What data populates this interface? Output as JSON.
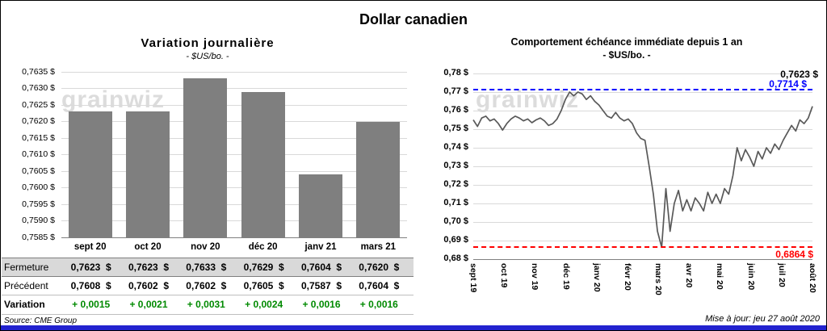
{
  "page_title": "Dollar canadien",
  "watermark": "grainwiz",
  "footer": {
    "source": "Source: CME Group",
    "updated": "Mise à jour: jeu 27 août 2020"
  },
  "colors": {
    "bar": "#7f7f7f",
    "line": "#595959",
    "grid": "#d9d9d9",
    "high_line": "#0000ff",
    "low_line": "#ff0000",
    "positive_value": "#008a00",
    "table_shade": "#d9d9d9",
    "bottom_bar": "#2222cf"
  },
  "chart_data": [
    {
      "type": "bar",
      "title": "Variation journalière",
      "subtitle": "- $US/bo. -",
      "categories": [
        "sept 20",
        "oct 20",
        "nov 20",
        "déc 20",
        "janv 21",
        "mars 21"
      ],
      "values": [
        0.7623,
        0.7623,
        0.7633,
        0.7629,
        0.7604,
        0.762
      ],
      "ylim": [
        0.7585,
        0.7635
      ],
      "ytick_step": 0.0005,
      "ytick_labels": [
        "0,7585 $",
        "0,7590 $",
        "0,7595 $",
        "0,7600 $",
        "0,7605 $",
        "0,7610 $",
        "0,7615 $",
        "0,7620 $",
        "0,7625 $",
        "0,7630 $",
        "0,7635 $"
      ],
      "grid": true,
      "legend": "none"
    },
    {
      "type": "line",
      "title": "Comportement échéance immédiate depuis 1 an",
      "subtitle": "- $US/bo. -",
      "x_labels": [
        "sept 19",
        "oct 19",
        "nov 19",
        "déc 19",
        "janv 20",
        "févr 20",
        "mars 20",
        "avr 20",
        "mai 20",
        "juin 20",
        "juil 20",
        "août 20"
      ],
      "values": [
        0.755,
        0.7515,
        0.756,
        0.757,
        0.7545,
        0.7555,
        0.753,
        0.7495,
        0.753,
        0.7555,
        0.757,
        0.756,
        0.7545,
        0.7555,
        0.7535,
        0.755,
        0.756,
        0.7545,
        0.752,
        0.753,
        0.7555,
        0.76,
        0.766,
        0.77,
        0.768,
        0.77,
        0.769,
        0.766,
        0.768,
        0.765,
        0.763,
        0.76,
        0.757,
        0.756,
        0.759,
        0.756,
        0.7545,
        0.7555,
        0.753,
        0.748,
        0.745,
        0.744,
        0.73,
        0.715,
        0.695,
        0.6864,
        0.718,
        0.695,
        0.71,
        0.717,
        0.706,
        0.712,
        0.706,
        0.713,
        0.71,
        0.706,
        0.716,
        0.71,
        0.715,
        0.71,
        0.718,
        0.715,
        0.725,
        0.74,
        0.733,
        0.739,
        0.735,
        0.73,
        0.738,
        0.734,
        0.74,
        0.737,
        0.742,
        0.739,
        0.744,
        0.748,
        0.752,
        0.749,
        0.755,
        0.753,
        0.756,
        0.7623
      ],
      "ylim": [
        0.68,
        0.78
      ],
      "ytick_step": 0.01,
      "ytick_labels": [
        "0,68 $",
        "0,69 $",
        "0,70 $",
        "0,71 $",
        "0,72 $",
        "0,73 $",
        "0,74 $",
        "0,75 $",
        "0,76 $",
        "0,77 $",
        "0,78 $"
      ],
      "grid": true,
      "legend": "none",
      "annotations": {
        "last": {
          "label": "0,7623 $",
          "value": 0.7623,
          "color": "#000000"
        },
        "high": {
          "label": "0,7714 $",
          "value": 0.7714,
          "color": "#0000ff",
          "style": "dashed"
        },
        "low": {
          "label": "0,6864 $",
          "value": 0.6864,
          "color": "#ff0000",
          "style": "dashed"
        }
      }
    }
  ],
  "table": {
    "rows": [
      {
        "label": "Fermeture",
        "values": [
          "0,7623  $",
          "0,7623  $",
          "0,7633  $",
          "0,7629  $",
          "0,7604  $",
          "0,7620  $"
        ]
      },
      {
        "label": "Précédent",
        "values": [
          "0,7608  $",
          "0,7602  $",
          "0,7602  $",
          "0,7605  $",
          "0,7587  $",
          "0,7604  $"
        ]
      },
      {
        "label": "Variation",
        "values": [
          "+ 0,0015",
          "+ 0,0021",
          "+ 0,0031",
          "+ 0,0024",
          "+ 0,0016",
          "+ 0,0016"
        ]
      }
    ]
  }
}
